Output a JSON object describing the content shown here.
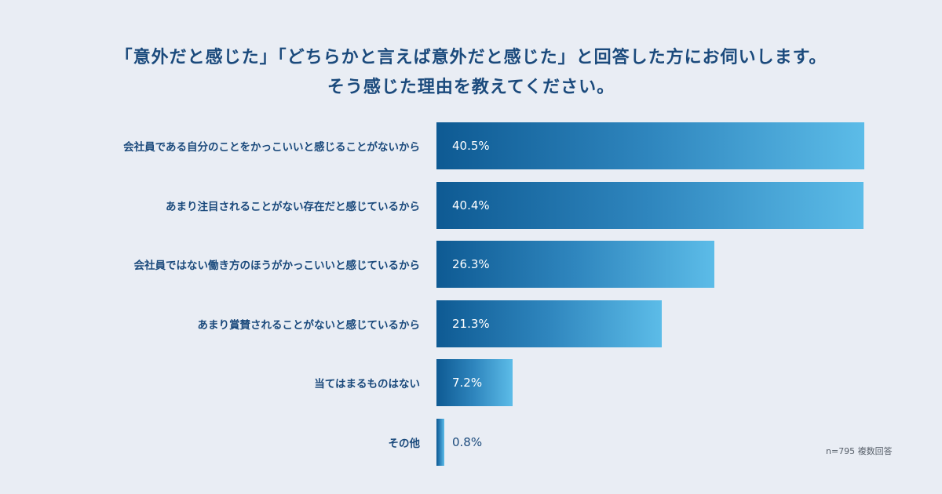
{
  "title_line1": "「意外だと感じた」「どちらかと言えば意外だと感じた」と回答した方にお伺いします。",
  "title_line2": "そう感じた理由を教えてください。",
  "note": "n=795 複数回答",
  "colors": {
    "background": "#e9edf4",
    "text": "#1b4a7c",
    "bar_start": "#0e5a93",
    "bar_end": "#5cbce8"
  },
  "chart_data": {
    "type": "bar",
    "orientation": "horizontal",
    "xlim": [
      0,
      40.5
    ],
    "grid": false,
    "legend": "none",
    "categories": [
      "会社員である自分のことをかっこいいと感じることがないから",
      "あまり注目されることがない存在だと感じているから",
      "会社員ではない働き方のほうがかっこいいと感じているから",
      "あまり賞賛されることがないと感じているから",
      "当てはまるものはない",
      "その他"
    ],
    "values": [
      40.5,
      40.4,
      26.3,
      21.3,
      7.2,
      0.8
    ],
    "value_labels": [
      "40.5%",
      "40.4%",
      "26.3%",
      "21.3%",
      "7.2%",
      "0.8%"
    ]
  }
}
